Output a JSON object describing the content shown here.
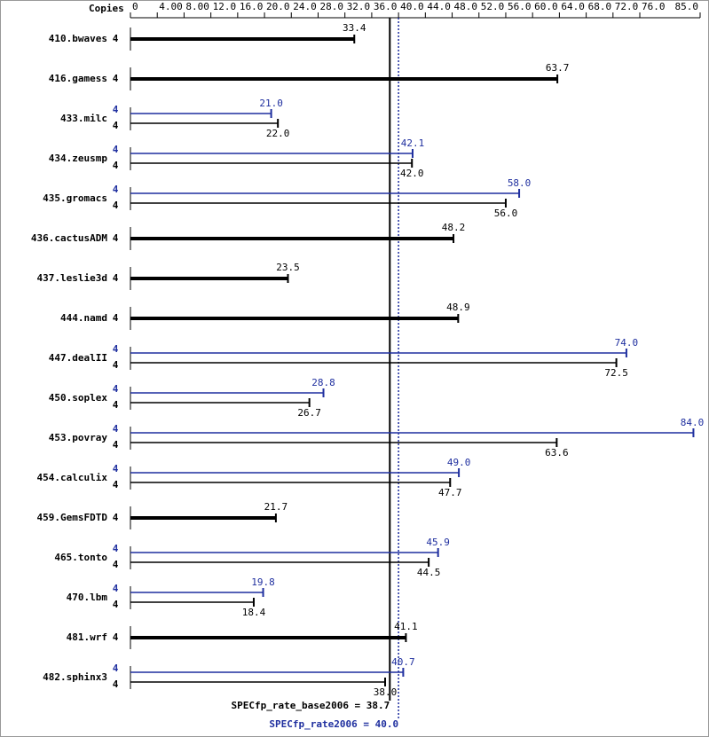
{
  "chart_data": {
    "type": "bar",
    "copies_label": "Copies",
    "categories": [
      "410.bwaves",
      "416.gamess",
      "433.milc",
      "434.zeusmp",
      "435.gromacs",
      "436.cactusADM",
      "437.leslie3d",
      "444.namd",
      "447.dealII",
      "450.soplex",
      "453.povray",
      "454.calculix",
      "459.GemsFDTD",
      "465.tonto",
      "470.lbm",
      "481.wrf",
      "482.sphinx3"
    ],
    "series": [
      {
        "color": "#000000",
        "values": [
          33.4,
          63.7,
          22.0,
          42.0,
          56.0,
          48.2,
          23.5,
          48.9,
          72.5,
          26.7,
          63.6,
          47.7,
          21.7,
          44.5,
          18.4,
          41.1,
          38.0
        ],
        "value_labels": [
          "33.4",
          "63.7",
          "22.0",
          "42.0",
          "56.0",
          "48.2",
          "23.5",
          "48.9",
          "72.5",
          "26.7",
          "63.6",
          "47.7",
          "21.7",
          "44.5",
          "18.4",
          "41.1",
          "38.0"
        ],
        "copies": [
          4,
          4,
          4,
          4,
          4,
          4,
          4,
          4,
          4,
          4,
          4,
          4,
          4,
          4,
          4,
          4,
          4
        ]
      },
      {
        "color": "#1f2f9f",
        "values": [
          null,
          null,
          21.0,
          42.1,
          58.0,
          null,
          null,
          null,
          74.0,
          28.8,
          84.0,
          49.0,
          null,
          45.9,
          19.8,
          null,
          40.7
        ],
        "value_labels": [
          null,
          null,
          "21.0",
          "42.1",
          "58.0",
          null,
          null,
          null,
          "74.0",
          "28.8",
          "84.0",
          "49.0",
          null,
          "45.9",
          "19.8",
          null,
          "40.7"
        ],
        "copies": [
          null,
          null,
          4,
          4,
          4,
          null,
          null,
          null,
          4,
          4,
          4,
          4,
          null,
          4,
          4,
          null,
          4
        ]
      }
    ],
    "xlim": [
      0,
      85
    ],
    "xticks": [
      0,
      {
        "value": 4,
        "label": "4.00"
      },
      {
        "value": 8,
        "label": "8.00"
      },
      {
        "value": 12,
        "label": "12.0"
      },
      {
        "value": 16,
        "label": "16.0"
      },
      {
        "value": 20,
        "label": "20.0"
      },
      {
        "value": 24,
        "label": "24.0"
      },
      {
        "value": 28,
        "label": "28.0"
      },
      {
        "value": 32,
        "label": "32.0"
      },
      {
        "value": 36,
        "label": "36.0"
      },
      {
        "value": 40,
        "label": "40.0"
      },
      {
        "value": 44,
        "label": "44.0"
      },
      {
        "value": 48,
        "label": "48.0"
      },
      {
        "value": 52,
        "label": "52.0"
      },
      {
        "value": 56,
        "label": "56.0"
      },
      {
        "value": 60,
        "label": "60.0"
      },
      {
        "value": 64,
        "label": "64.0"
      },
      {
        "value": 68,
        "label": "68.0"
      },
      {
        "value": 72,
        "label": "72.0"
      },
      {
        "value": 76,
        "label": "76.0"
      },
      {
        "value": 85,
        "label": "85.0"
      }
    ],
    "reference_lines": [
      {
        "label": "SPECfp_rate_base2006 = 38.7",
        "value": 38.7,
        "color": "#000000"
      },
      {
        "label": "SPECfp_rate2006 = 40.0",
        "value": 40.0,
        "color": "#1f2f9f"
      }
    ]
  }
}
